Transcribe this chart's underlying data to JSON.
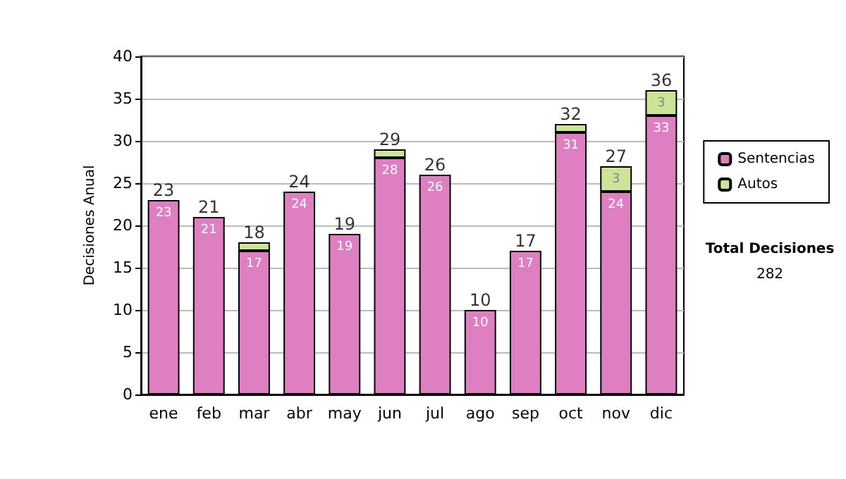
{
  "chart_data": {
    "type": "bar",
    "ylabel": "Decisiones Anual",
    "stacked": true,
    "categories": [
      "ene",
      "feb",
      "mar",
      "abr",
      "may",
      "jun",
      "jul",
      "ago",
      "sep",
      "oct",
      "nov",
      "dic"
    ],
    "series": [
      {
        "name": "Sentencias",
        "color": "#dd7fc0",
        "values": [
          23,
          21,
          17,
          24,
          19,
          28,
          26,
          10,
          17,
          31,
          24,
          33
        ],
        "value_labels": [
          "23",
          "21",
          "17",
          "24",
          "19",
          "28",
          "26",
          "10",
          "17",
          "31",
          "24",
          "33"
        ]
      },
      {
        "name": "Autos",
        "color": "#cce497",
        "values": [
          0,
          0,
          1,
          0,
          0,
          1,
          0,
          0,
          0,
          1,
          3,
          3
        ],
        "value_labels": [
          null,
          null,
          null,
          null,
          null,
          null,
          null,
          null,
          null,
          null,
          "3",
          "3"
        ]
      }
    ],
    "totals": [
      "23",
      "21",
      "18",
      "24",
      "19",
      "29",
      "26",
      "10",
      "17",
      "32",
      "27",
      "36"
    ],
    "ylim": [
      0,
      40
    ],
    "yticks": [
      0,
      5,
      10,
      15,
      20,
      25,
      30,
      35,
      40
    ],
    "grid": "y",
    "legend": "right",
    "annotations": [
      "Total Decisiones",
      "282"
    ]
  }
}
